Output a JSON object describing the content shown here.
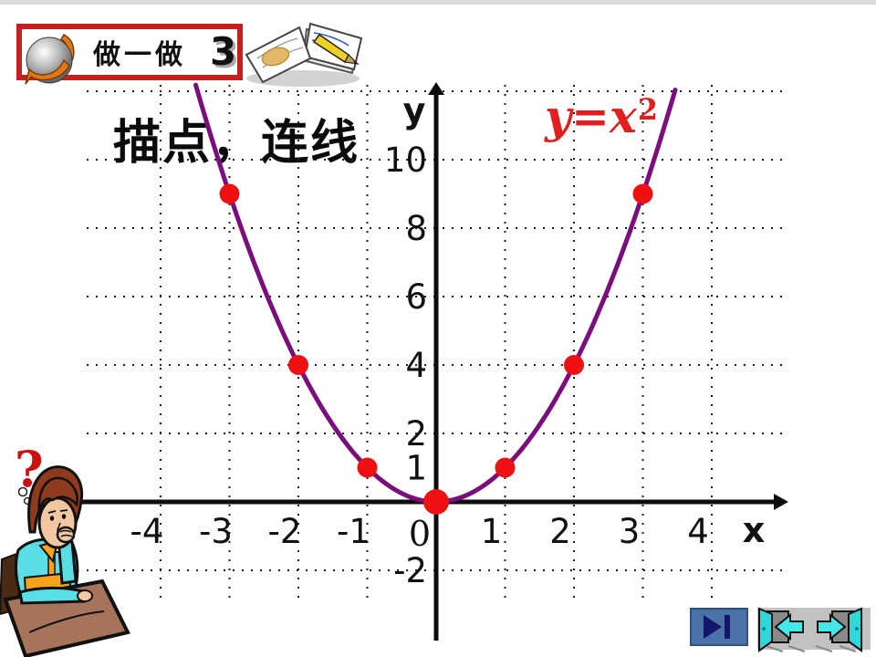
{
  "header": {
    "badge_label": "做一做",
    "badge_number": "3"
  },
  "title": "描点，连线",
  "formula": {
    "lhs": "y=x",
    "sup": "2"
  },
  "question_mark": "?",
  "chart_data": {
    "type": "scatter",
    "function_label": "y=x²",
    "function": "y = x^2",
    "points": [
      [
        -3,
        9
      ],
      [
        -2,
        4
      ],
      [
        -1,
        1
      ],
      [
        0,
        0
      ],
      [
        1,
        1
      ],
      [
        2,
        4
      ],
      [
        3,
        9
      ]
    ],
    "x_ticks": [
      -4,
      -3,
      -2,
      -1,
      1,
      2,
      3,
      4
    ],
    "y_ticks": [
      10,
      8,
      6,
      4,
      2,
      1,
      -2
    ],
    "origin_label": "0",
    "x_axis_label": "x",
    "y_axis_label": "y",
    "x_range": [
      -4.6,
      5.1
    ],
    "y_range": [
      -3.2,
      12.4
    ],
    "grid": "dotted",
    "curve_color": "#7b0d7c",
    "point_color": "#ee1111",
    "legend_position": "top-right"
  },
  "colors": {
    "badge_border": "#c42020",
    "formula_red": "#e31e1e",
    "question_red": "#cc1111"
  }
}
